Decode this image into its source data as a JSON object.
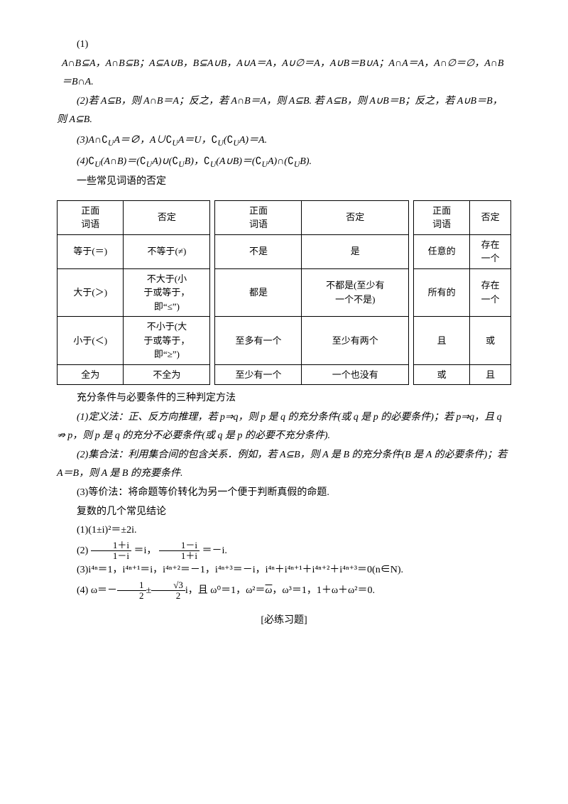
{
  "intro": {
    "item1_label": "(1)",
    "line1": "A∩B⊆A，A∩B⊆B；A⊆A∪B，B⊆A∪B，A∪A＝A，A∪∅＝A，A∪B＝B∪A；A∩A＝A，A∩∅＝∅，A∩B＝B∩A.",
    "line2": "(2)若 A⊆B，则 A∩B＝A；反之，若 A∩B＝A，则 A⊆B. 若 A⊆B，则 A∪B＝B；反之，若 A∪B＝B，则 A⊆B.",
    "line3_a": "(3)A∩",
    "line3_b": "A＝∅，A∪",
    "line3_c": "A＝U，",
    "line3_d": "(",
    "line3_e": "A)＝A.",
    "line4_a": "(4)",
    "line4_b": "(A∩B)＝(",
    "line4_c": "A)∪(",
    "line4_d": "B)，",
    "line4_e": "(A∪B)＝(",
    "line4_f": "A)∩(",
    "line4_g": "B).",
    "neg_title": "一些常见词语的否定"
  },
  "complement_U": "∁",
  "complement_sub": "U",
  "table": {
    "columns": [
      [
        "正面词语",
        "否定"
      ],
      [
        "正面词语",
        "否定"
      ],
      [
        "正面词语",
        "否定"
      ]
    ],
    "rows": [
      [
        "等于(＝)",
        "不等于(≠)",
        "不是",
        "是",
        "任意的",
        "存在一个"
      ],
      [
        "大于(＞)",
        "不大于(小于或等于，即“≤”)",
        "都是",
        "不都是(至少有一个不是)",
        "所有的",
        "存在一个"
      ],
      [
        "小于(＜)",
        "不小于(大于或等于，即“≥”)",
        "至多有一个",
        "至少有两个",
        "且",
        "或"
      ],
      [
        "全为",
        "不全为",
        "至少有一个",
        "一个也没有",
        "或",
        "且"
      ]
    ]
  },
  "cond": {
    "title": "充分条件与必要条件的三种判定方法",
    "def1a": "(1)定义法：正、反方向推理，若 p⇒q，则 p 是 q 的充分条件(或 q 是 p 的必要条件)；若 p⇒q，且 q ⇏ p，则 p 是 q 的充分不必要条件(或 q 是 p 的必要不充分条件).",
    "def2": "(2)集合法：利用集合间的包含关系．例如，若 A⊆B，则 A 是 B 的充分条件(B 是 A 的必要条件)；若 A＝B，则 A 是 B 的充要条件.",
    "def3": "(3)等价法：将命题等价转化为另一个便于判断真假的命题."
  },
  "complex": {
    "title": "复数的几个常见结论",
    "c1": "(1)(1±i)²＝±2i.",
    "c2_pre": "(2)",
    "c2_frac1_num": "1＋i",
    "c2_frac1_den": "1－i",
    "c2_mid1": "＝i，",
    "c2_frac2_num": "1－i",
    "c2_frac2_den": "1＋i",
    "c2_mid2": "＝－i.",
    "c3": "(3)i⁴ⁿ＝1，i⁴ⁿ⁺¹＝i，i⁴ⁿ⁺²＝－1，i⁴ⁿ⁺³＝－i，i⁴ⁿ＋i⁴ⁿ⁺¹＋i⁴ⁿ⁺²＋i⁴ⁿ⁺³＝0(n∈N).",
    "c4_pre": "(4) ω＝－",
    "c4_f1n": "1",
    "c4_f1d": "2",
    "c4_pm": "±",
    "c4_f2n": "√3",
    "c4_f2d": "2",
    "c4_mid": "i，且 ω⁰＝1，ω²＝",
    "c4_bar": "ω",
    "c4_end": "，ω³＝1，1＋ω＋ω²＝0."
  },
  "footer": "[必练习题]"
}
